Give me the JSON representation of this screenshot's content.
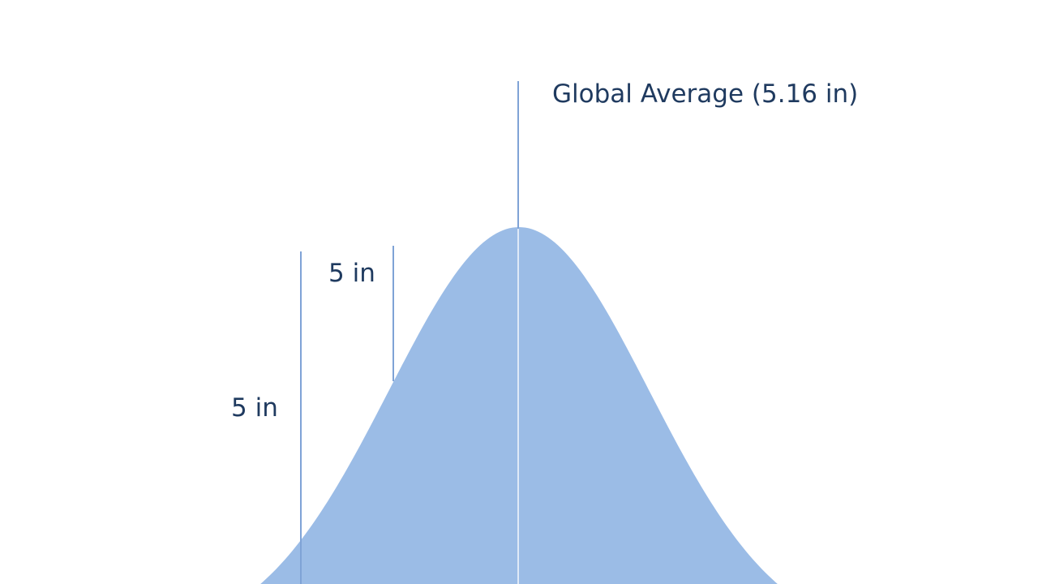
{
  "annotations": {
    "average": "Global Average (5.16 in)",
    "upper_marker": "5 in",
    "lower_marker": "5 in"
  }
}
